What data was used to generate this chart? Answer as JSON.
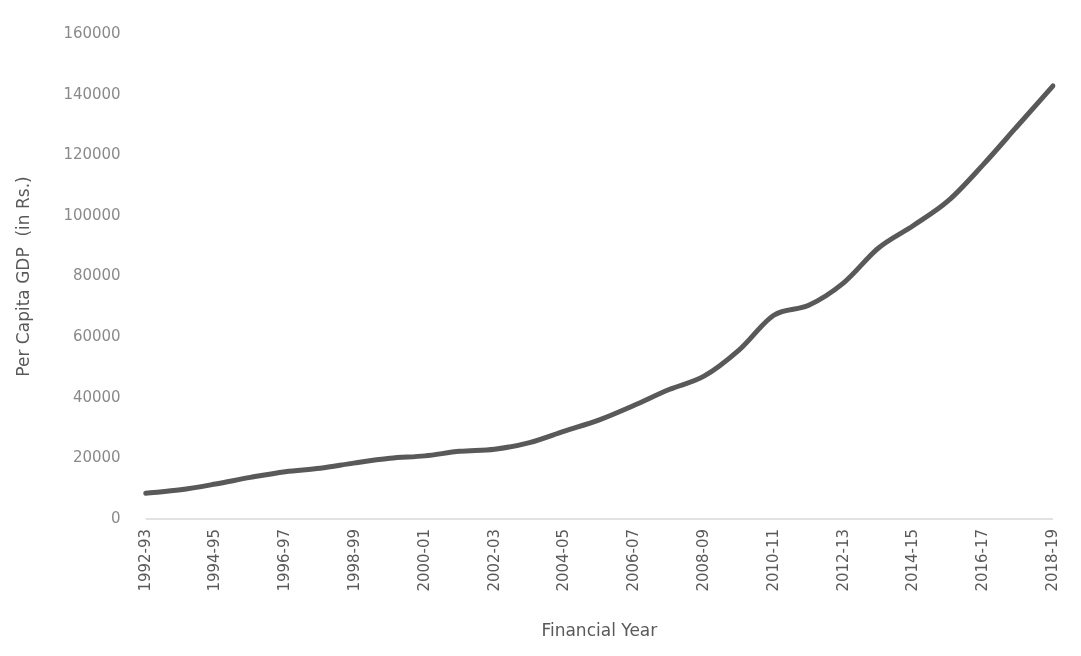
{
  "chart_data": {
    "type": "line",
    "xlabel": "Financial Year",
    "ylabel": "Per Capita GDP  (in Rs.)",
    "categories": [
      "1992-93",
      null,
      "1994-95",
      null,
      "1996-97",
      null,
      "1998-99",
      null,
      "2000-01",
      null,
      "2002-03",
      null,
      "2004-05",
      null,
      "2006-07",
      null,
      "2008-09",
      null,
      "2010-11",
      null,
      "2012-13",
      null,
      "2014-15",
      null,
      "2016-17",
      null,
      "2018-19"
    ],
    "series": [
      {
        "color": "#595959",
        "values": [
          8500,
          9600,
          11500,
          13700,
          15600,
          16700,
          18500,
          20000,
          20800,
          22300,
          23000,
          25200,
          29000,
          32700,
          37500,
          42700,
          47100,
          55700,
          67200,
          70500,
          77900,
          89400,
          96800,
          105000,
          116900,
          129900,
          142900
        ]
      }
    ],
    "ylim": [
      0,
      160000
    ],
    "yticks": [
      0,
      20000,
      40000,
      60000,
      80000,
      100000,
      120000,
      140000,
      160000
    ],
    "grid": false,
    "legend": false,
    "marker": "none",
    "line_style": "solid"
  }
}
